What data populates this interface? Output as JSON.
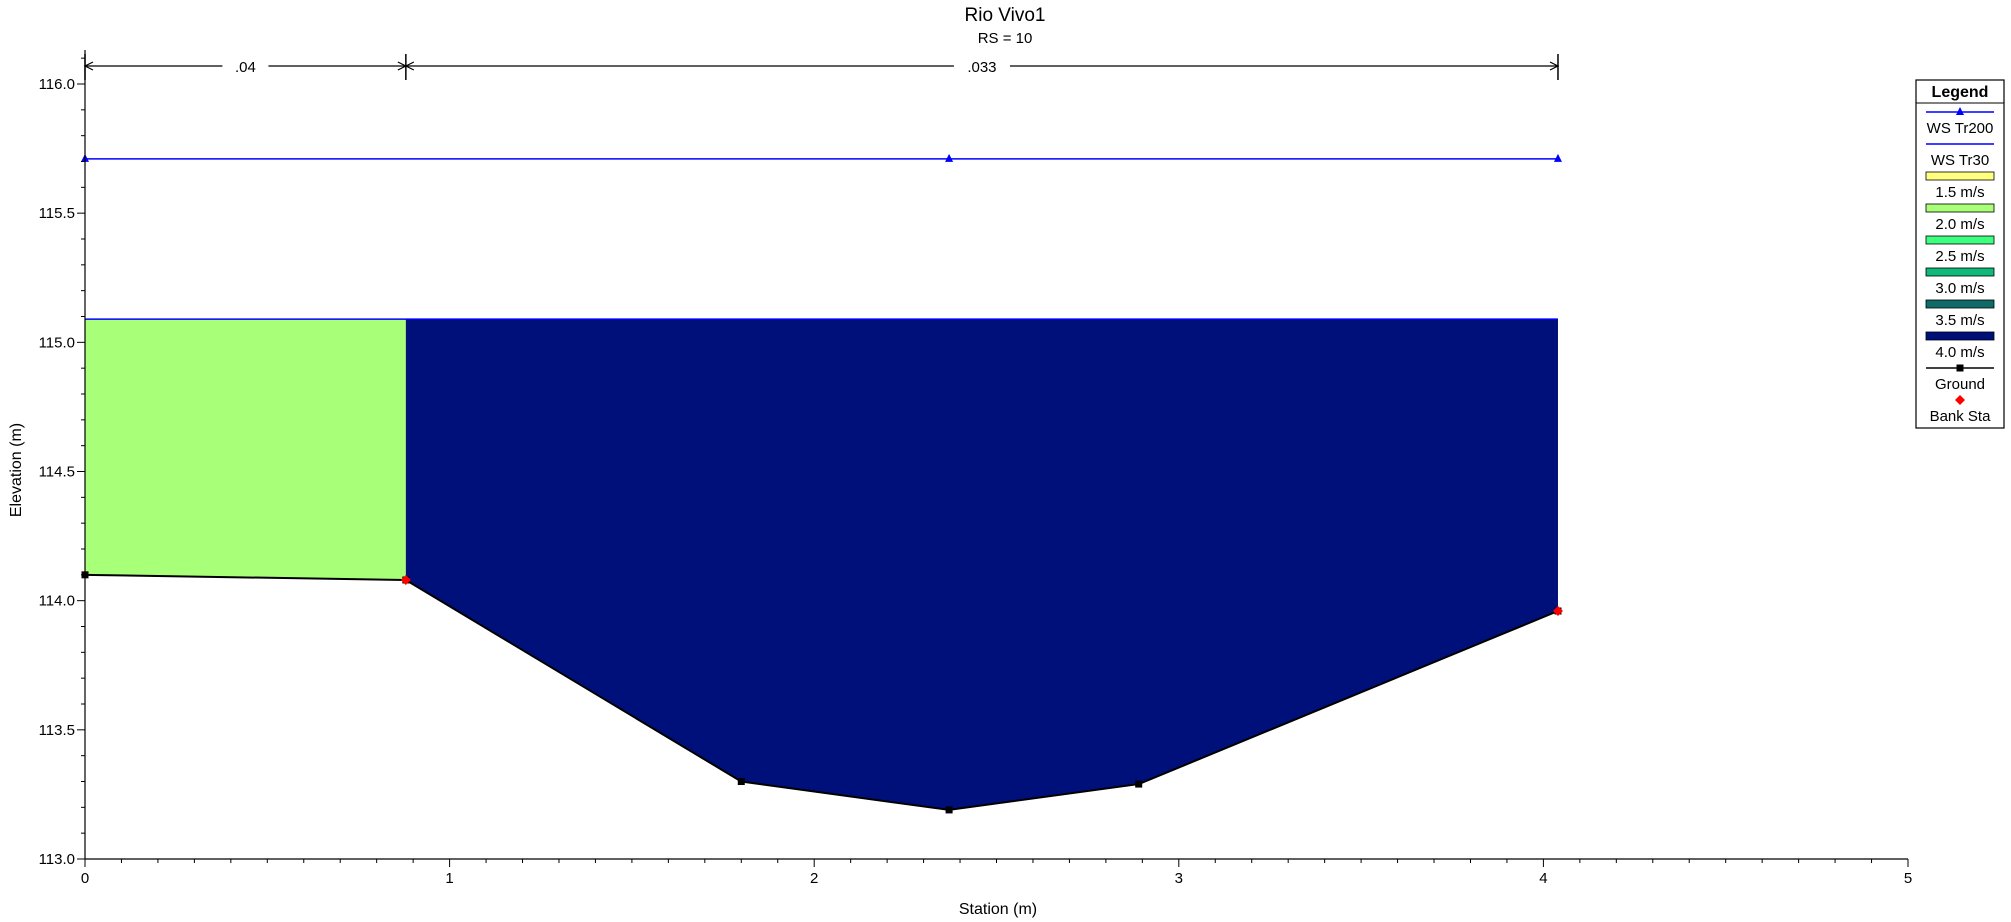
{
  "chart_data": {
    "type": "area",
    "title": "Rio Vivo1",
    "subtitle": "RS = 10",
    "xlabel": "Station (m)",
    "ylabel": "Elevation (m)",
    "xlim": [
      0,
      5
    ],
    "ylim": [
      113.0,
      116.1
    ],
    "x_ticks": [
      0,
      1,
      2,
      3,
      4,
      5
    ],
    "x_tick_labels": [
      "0",
      "1",
      "2",
      "3",
      "4",
      "5"
    ],
    "y_ticks": [
      113.0,
      113.5,
      114.0,
      114.5,
      115.0,
      115.5,
      116.0
    ],
    "y_tick_labels": [
      "113.0",
      "113.5",
      "114.0",
      "114.5",
      "115.0",
      "115.5",
      "116.0"
    ],
    "grid": false,
    "legend_position": "right",
    "mannings": [
      {
        "label": ".04",
        "x_start": 0,
        "x_end": 0.88
      },
      {
        "label": ".033",
        "x_start": 0.88,
        "x_end": 4.04
      }
    ],
    "ground": {
      "name": "Ground",
      "color": "#000000",
      "x": [
        0,
        0.88,
        1.8,
        2.37,
        2.89,
        4.04
      ],
      "y": [
        114.1,
        114.08,
        113.3,
        113.19,
        113.29,
        113.96
      ]
    },
    "bank_stations": {
      "name": "Bank Sta",
      "color": "#ff0000",
      "x": [
        0.88,
        4.04
      ],
      "y": [
        114.08,
        113.96
      ]
    },
    "ws_tr200": {
      "name": "WS Tr200",
      "color": "#0000ff",
      "elevation": 115.71,
      "x": [
        0,
        2.37,
        4.04
      ]
    },
    "ws_tr30": {
      "name": "WS Tr30",
      "color": "#0000ff",
      "elevation": 115.09
    },
    "velocity_fills": [
      {
        "x_start": 0,
        "x_end": 0.88,
        "color": "#a8ff78",
        "velocity": "2.0 m/s"
      },
      {
        "x_start": 0.88,
        "x_end": 4.04,
        "color": "#00107a",
        "velocity": "4.0 m/s"
      }
    ]
  },
  "legend": {
    "title": "Legend",
    "items": [
      {
        "label": "WS Tr200",
        "kind": "line-triangle",
        "color": "#0000ff"
      },
      {
        "label": "WS Tr30",
        "kind": "line",
        "color": "#0000ff"
      },
      {
        "label": "1.5 m/s",
        "kind": "swatch",
        "color": "#ffff80"
      },
      {
        "label": "2.0 m/s",
        "kind": "swatch",
        "color": "#a8ff78"
      },
      {
        "label": "2.5 m/s",
        "kind": "swatch",
        "color": "#3cff80"
      },
      {
        "label": "3.0 m/s",
        "kind": "swatch",
        "color": "#10b87a"
      },
      {
        "label": "3.5 m/s",
        "kind": "swatch",
        "color": "#106a6a"
      },
      {
        "label": "4.0 m/s",
        "kind": "swatch",
        "color": "#00107a"
      },
      {
        "label": "Ground",
        "kind": "line-square",
        "color": "#000000"
      },
      {
        "label": "Bank Sta",
        "kind": "diamond",
        "color": "#ff0000"
      }
    ]
  }
}
